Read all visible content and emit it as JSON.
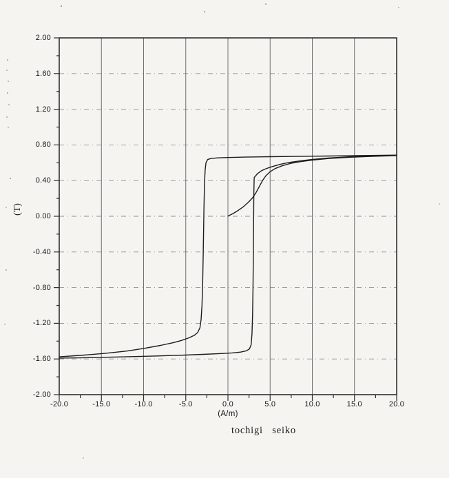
{
  "figure": {
    "caption": "tochigi seiko",
    "y_axis": {
      "unit_label": "(T)",
      "tick_labels": [
        "2.00",
        "1.60",
        "1.20",
        "0.80",
        "0.40",
        "0.00",
        "-0.40",
        "-0.80",
        "-1.20",
        "-1.60",
        "-2.00"
      ]
    },
    "x_axis": {
      "unit_label": "(A/m)",
      "tick_labels": [
        "-20.0",
        "-15.0",
        "-10.0",
        "-5.0",
        "0.0",
        "5.0",
        "10.0",
        "15.0",
        "20.0"
      ]
    }
  },
  "chart_data": {
    "type": "line",
    "title": "",
    "xlabel": "(A/m)",
    "ylabel": "(T)",
    "caption": "tochigi seiko",
    "xlim": [
      -20,
      20
    ],
    "ylim": [
      -2,
      2
    ],
    "x_ticks": {
      "major": 5,
      "minor": 2.5
    },
    "y_ticks": {
      "major": 0.4,
      "minor": 0.2
    },
    "grid": {
      "vertical": "solid",
      "horizontal": "dash-dot"
    },
    "legend": "none",
    "description": "Magnetic hysteresis loop (B-H curve) with initial magnetization curve; saturation about +0.68 T and -1.58 T; coercive transitions near -2.8 A/m (descending) and +3.0 A/m (ascending)",
    "series": [
      {
        "name": "hysteresis-descending-branch",
        "points": [
          [
            20,
            0.686
          ],
          [
            16,
            0.681
          ],
          [
            12,
            0.676
          ],
          [
            8,
            0.671
          ],
          [
            5,
            0.668
          ],
          [
            2,
            0.663
          ],
          [
            0,
            0.659
          ],
          [
            -1.2,
            0.655
          ],
          [
            -2.0,
            0.648
          ],
          [
            -2.4,
            0.636
          ],
          [
            -2.6,
            0.6
          ],
          [
            -2.7,
            0.52
          ],
          [
            -2.78,
            0.35
          ],
          [
            -2.84,
            0.1
          ],
          [
            -2.89,
            -0.18
          ],
          [
            -2.94,
            -0.46
          ],
          [
            -3.0,
            -0.75
          ],
          [
            -3.08,
            -1.0
          ],
          [
            -3.18,
            -1.16
          ],
          [
            -3.32,
            -1.25
          ],
          [
            -3.6,
            -1.305
          ],
          [
            -4.0,
            -1.335
          ],
          [
            -4.6,
            -1.362
          ],
          [
            -5.5,
            -1.392
          ],
          [
            -6.5,
            -1.418
          ],
          [
            -8,
            -1.448
          ],
          [
            -10,
            -1.482
          ],
          [
            -12,
            -1.511
          ],
          [
            -14.5,
            -1.536
          ],
          [
            -17,
            -1.556
          ],
          [
            -20,
            -1.576
          ]
        ]
      },
      {
        "name": "hysteresis-ascending-branch",
        "points": [
          [
            -20,
            -1.59
          ],
          [
            -17,
            -1.586
          ],
          [
            -14,
            -1.58
          ],
          [
            -11,
            -1.573
          ],
          [
            -8,
            -1.565
          ],
          [
            -5,
            -1.556
          ],
          [
            -3,
            -1.548
          ],
          [
            -1,
            -1.54
          ],
          [
            0.5,
            -1.532
          ],
          [
            1.5,
            -1.523
          ],
          [
            2.2,
            -1.508
          ],
          [
            2.55,
            -1.487
          ],
          [
            2.75,
            -1.44
          ],
          [
            2.85,
            -1.32
          ],
          [
            2.92,
            -1.1
          ],
          [
            2.97,
            -0.8
          ],
          [
            3.0,
            -0.5
          ],
          [
            3.03,
            -0.2
          ],
          [
            3.05,
            0.05
          ],
          [
            3.07,
            0.25
          ],
          [
            3.1,
            0.4
          ],
          [
            3.12,
            0.435
          ],
          [
            3.5,
            0.478
          ],
          [
            4.0,
            0.512
          ],
          [
            4.6,
            0.537
          ],
          [
            5.3,
            0.558
          ],
          [
            6.2,
            0.582
          ],
          [
            7.2,
            0.602
          ],
          [
            8.5,
            0.62
          ],
          [
            10,
            0.638
          ],
          [
            12,
            0.654
          ],
          [
            14.5,
            0.667
          ],
          [
            17,
            0.676
          ],
          [
            20,
            0.684
          ]
        ]
      },
      {
        "name": "initial-magnetization-curve",
        "points": [
          [
            0,
            0.002
          ],
          [
            0.6,
            0.03
          ],
          [
            1.2,
            0.065
          ],
          [
            1.8,
            0.105
          ],
          [
            2.4,
            0.155
          ],
          [
            2.9,
            0.205
          ],
          [
            3.3,
            0.26
          ],
          [
            3.7,
            0.33
          ],
          [
            4.1,
            0.4
          ],
          [
            4.5,
            0.455
          ],
          [
            5.0,
            0.5
          ],
          [
            5.6,
            0.535
          ],
          [
            6.4,
            0.565
          ],
          [
            7.4,
            0.592
          ],
          [
            8.6,
            0.612
          ],
          [
            10,
            0.63
          ],
          [
            12,
            0.648
          ],
          [
            14.5,
            0.662
          ],
          [
            17,
            0.672
          ],
          [
            20,
            0.68
          ]
        ]
      }
    ]
  },
  "colors": {
    "background": "#f5f4f1",
    "curve": "#1c1c1c",
    "plot_border": "#2e2e2e",
    "grid_vertical": "#6f6f6f",
    "grid_horizontal": "#909090",
    "tick": "#2e2e2e",
    "text": "#161616"
  }
}
